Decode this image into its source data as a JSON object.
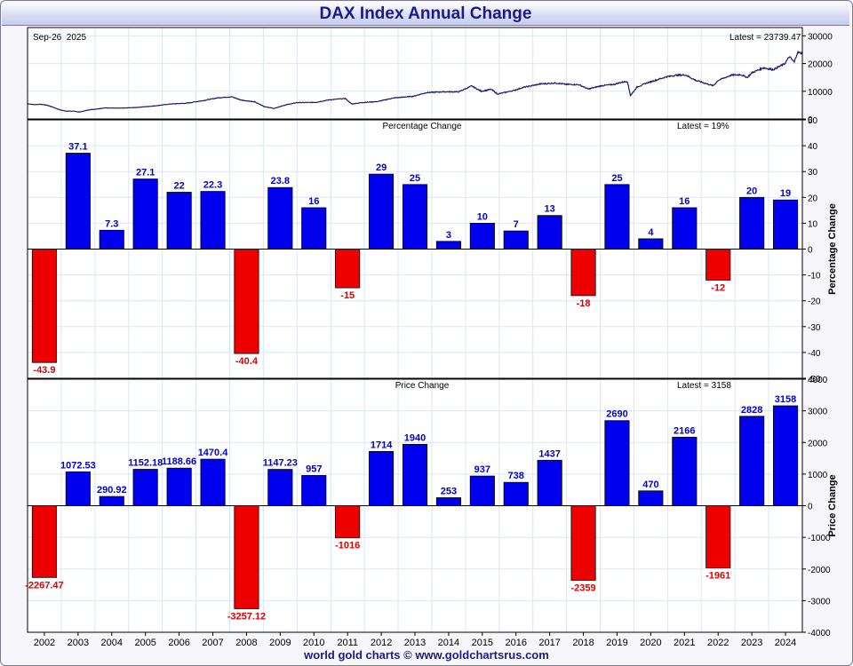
{
  "title": "DAX Index Annual Change",
  "footer": "world gold charts © www.goldchartsrus.com",
  "colors": {
    "positive": "#0000ee",
    "negative": "#ee0000",
    "positive_label": "#0000cc",
    "negative_label": "#dd0000",
    "line": "#1a1a6e",
    "grid": "#d8e8f0"
  },
  "chart_data": [
    {
      "type": "line",
      "panel": "price",
      "date_label": "Sep-26  2025",
      "latest_label": "Latest = 23739.47",
      "ylim": [
        0,
        33000
      ],
      "yticks": [
        0,
        10000,
        20000,
        30000
      ],
      "x_range": [
        2001.6,
        2025.5
      ],
      "points": [
        [
          2001.6,
          5500
        ],
        [
          2001.8,
          5200
        ],
        [
          2002.0,
          5300
        ],
        [
          2002.2,
          5000
        ],
        [
          2002.4,
          4200
        ],
        [
          2002.6,
          3300
        ],
        [
          2002.8,
          2800
        ],
        [
          2003.0,
          2850
        ],
        [
          2003.2,
          2500
        ],
        [
          2003.5,
          3300
        ],
        [
          2003.8,
          3700
        ],
        [
          2004.0,
          4000
        ],
        [
          2004.5,
          3900
        ],
        [
          2005.0,
          4200
        ],
        [
          2005.5,
          4700
        ],
        [
          2006.0,
          5400
        ],
        [
          2006.5,
          5700
        ],
        [
          2007.0,
          6600
        ],
        [
          2007.5,
          7700
        ],
        [
          2007.9,
          8000
        ],
        [
          2008.2,
          6800
        ],
        [
          2008.6,
          6200
        ],
        [
          2008.9,
          4500
        ],
        [
          2009.2,
          3800
        ],
        [
          2009.5,
          4900
        ],
        [
          2009.9,
          5900
        ],
        [
          2010.5,
          6000
        ],
        [
          2010.9,
          6900
        ],
        [
          2011.4,
          7400
        ],
        [
          2011.6,
          5400
        ],
        [
          2011.9,
          5900
        ],
        [
          2012.4,
          6300
        ],
        [
          2012.9,
          7600
        ],
        [
          2013.5,
          8200
        ],
        [
          2013.9,
          9500
        ],
        [
          2014.4,
          9800
        ],
        [
          2014.9,
          9800
        ],
        [
          2015.3,
          11900
        ],
        [
          2015.6,
          10000
        ],
        [
          2015.9,
          10700
        ],
        [
          2016.1,
          9000
        ],
        [
          2016.6,
          10300
        ],
        [
          2016.9,
          11400
        ],
        [
          2017.4,
          12600
        ],
        [
          2017.9,
          13000
        ],
        [
          2018.2,
          12500
        ],
        [
          2018.6,
          12400
        ],
        [
          2018.9,
          10800
        ],
        [
          2019.3,
          12000
        ],
        [
          2019.7,
          12500
        ],
        [
          2019.9,
          13200
        ],
        [
          2020.1,
          13600
        ],
        [
          2020.2,
          8500
        ],
        [
          2020.4,
          11500
        ],
        [
          2020.7,
          13000
        ],
        [
          2020.9,
          13700
        ],
        [
          2021.3,
          15200
        ],
        [
          2021.6,
          15800
        ],
        [
          2021.9,
          15900
        ],
        [
          2022.2,
          14000
        ],
        [
          2022.5,
          12900
        ],
        [
          2022.75,
          12000
        ],
        [
          2022.9,
          13900
        ],
        [
          2023.3,
          15800
        ],
        [
          2023.6,
          16000
        ],
        [
          2023.8,
          15000
        ],
        [
          2023.95,
          16700
        ],
        [
          2024.3,
          18500
        ],
        [
          2024.6,
          17800
        ],
        [
          2024.95,
          19900
        ],
        [
          2025.1,
          22500
        ],
        [
          2025.25,
          20500
        ],
        [
          2025.35,
          24000
        ],
        [
          2025.5,
          23739.47
        ]
      ]
    },
    {
      "type": "bar",
      "panel": "percentage",
      "title": "Percentage Change",
      "latest_label": "Latest = 19%",
      "ylabel": "Percentage Change",
      "ylim": [
        -50,
        50
      ],
      "yticks": [
        -50,
        -40,
        -30,
        -20,
        -10,
        0,
        10,
        20,
        30,
        40,
        50
      ],
      "categories": [
        "2002",
        "2003",
        "2004",
        "2005",
        "2006",
        "2007",
        "2008",
        "2009",
        "2010",
        "2011",
        "2012",
        "2013",
        "2014",
        "2015",
        "2016",
        "2017",
        "2018",
        "2019",
        "2020",
        "2021",
        "2022",
        "2023",
        "2024"
      ],
      "values": [
        -43.9,
        37.1,
        7.3,
        27.1,
        22,
        22.3,
        -40.4,
        23.8,
        16,
        -15,
        29,
        25,
        3,
        10,
        7,
        13,
        -18,
        25,
        4,
        16,
        -12,
        20,
        19
      ],
      "labels": [
        "-43.9",
        "37.1",
        "7.3",
        "27.1",
        "22",
        "22.3",
        "-40.4",
        "23.8",
        "16",
        "-15",
        "29",
        "25",
        "3",
        "10",
        "7",
        "13",
        "-18",
        "25",
        "4",
        "16",
        "-12",
        "20",
        "19"
      ]
    },
    {
      "type": "bar",
      "panel": "price-change",
      "title": "Price Change",
      "latest_label": "Latest = 3158",
      "ylabel": "Price Change",
      "ylim": [
        -4000,
        4000
      ],
      "yticks": [
        -4000,
        -3000,
        -2000,
        -1000,
        0,
        1000,
        2000,
        3000,
        4000
      ],
      "categories": [
        "2002",
        "2003",
        "2004",
        "2005",
        "2006",
        "2007",
        "2008",
        "2009",
        "2010",
        "2011",
        "2012",
        "2013",
        "2014",
        "2015",
        "2016",
        "2017",
        "2018",
        "2019",
        "2020",
        "2021",
        "2022",
        "2023",
        "2024"
      ],
      "values": [
        -2267.47,
        1072.53,
        290.92,
        1152.18,
        1188.66,
        1470.4,
        -3257.12,
        1147.23,
        957,
        -1016,
        1714,
        1940,
        253,
        937,
        738,
        1437,
        -2359,
        2690,
        470,
        2166,
        -1961,
        2828,
        3158
      ],
      "labels": [
        "-2267.47",
        "1072.53",
        "290.92",
        "1152.18",
        "1188.66",
        "1470.4",
        "-3257.12",
        "1147.23",
        "957",
        "-1016",
        "1714",
        "1940",
        "253",
        "937",
        "738",
        "1437",
        "-2359",
        "2690",
        "470",
        "2166",
        "-1961",
        "2828",
        "3158"
      ]
    }
  ]
}
